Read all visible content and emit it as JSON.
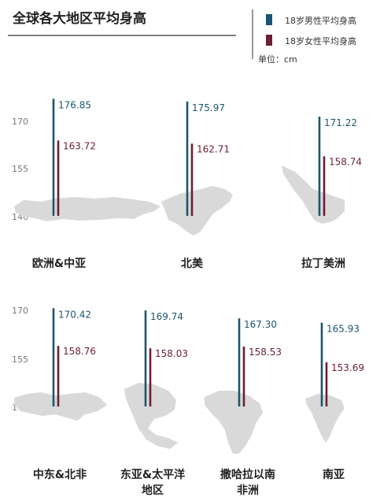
{
  "chart_data": {
    "type": "bar",
    "title": "全球各大地区平均身高",
    "unit": "单位：cm",
    "legend": [
      {
        "name": "18岁男性平均身高",
        "color": "#1a5670"
      },
      {
        "name": "18岁女性平均身高",
        "color": "#6b1f32"
      }
    ],
    "ylim": [
      140,
      180
    ],
    "ticks": [
      "170",
      "155",
      "140"
    ],
    "regions": [
      {
        "name": [
          "欧洲&中亚"
        ],
        "male": 176.85,
        "female": 163.72,
        "male_label": "176.85",
        "female_label": "163.72"
      },
      {
        "name": [
          "北美"
        ],
        "male": 175.97,
        "female": 162.71,
        "male_label": "175.97",
        "female_label": "162.71"
      },
      {
        "name": [
          "拉丁美洲"
        ],
        "male": 171.22,
        "female": 158.74,
        "male_label": "171.22",
        "female_label": "158.74"
      },
      {
        "name": [
          "中东&北非"
        ],
        "male": 170.42,
        "female": 158.76,
        "male_label": "170.42",
        "female_label": "158.76"
      },
      {
        "name": [
          "东亚&太平洋",
          "地区"
        ],
        "male": 169.74,
        "female": 158.03,
        "male_label": "169.74",
        "female_label": "158.03"
      },
      {
        "name": [
          "撒哈拉以南",
          "非洲"
        ],
        "male": 167.3,
        "female": 158.53,
        "male_label": "167.30",
        "female_label": "158.53"
      },
      {
        "name": [
          "南亚"
        ],
        "male": 165.93,
        "female": 153.69,
        "male_label": "165.93",
        "female_label": "153.69"
      }
    ]
  }
}
